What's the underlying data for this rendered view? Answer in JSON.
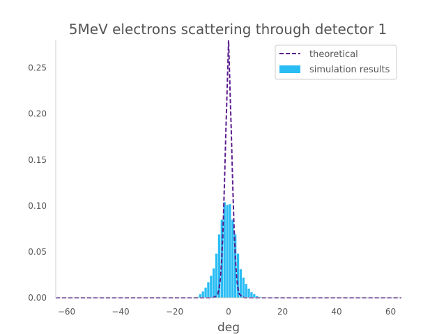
{
  "chart_data": {
    "type": "bar",
    "title": "5MeV electrons scattering through detector 1",
    "xlabel": "deg",
    "ylabel": "",
    "xlim": [
      -64,
      64
    ],
    "ylim": [
      0,
      0.28
    ],
    "grid": false,
    "legend_position": "top-right",
    "x_ticks": [
      -60,
      -40,
      -20,
      0,
      20,
      40,
      60
    ],
    "x_tick_labels": [
      "−60",
      "−40",
      "−20",
      "0",
      "20",
      "40",
      "60"
    ],
    "y_ticks": [
      0.0,
      0.05,
      0.1,
      0.15,
      0.2,
      0.25
    ],
    "y_tick_labels": [
      "0.00",
      "0.05",
      "0.10",
      "0.15",
      "0.20",
      "0.25"
    ],
    "bin_width": 1.0,
    "series": [
      {
        "name": "simulation results",
        "kind": "bar",
        "color": "#29bdf4",
        "x": [
          -12,
          -11,
          -10,
          -9,
          -8,
          -7,
          -6,
          -5,
          -4,
          -3,
          -2,
          -1,
          0,
          1,
          2,
          3,
          4,
          5,
          6,
          7,
          8,
          9,
          10,
          11
        ],
        "values": [
          0.001,
          0.004,
          0.007,
          0.011,
          0.017,
          0.024,
          0.032,
          0.048,
          0.069,
          0.085,
          0.104,
          0.101,
          0.102,
          0.085,
          0.069,
          0.048,
          0.031,
          0.022,
          0.015,
          0.01,
          0.006,
          0.004,
          0.002,
          0.001
        ]
      },
      {
        "name": "theoretical",
        "kind": "dashed-line",
        "color": "#5b1c8f",
        "x": [
          -64,
          -20,
          -6,
          -5,
          -4,
          -3.5,
          -3,
          -2.5,
          -2,
          -1.5,
          -1,
          -0.5,
          0,
          0.5,
          1,
          1.5,
          2,
          2.5,
          3,
          3.5,
          4,
          5,
          6,
          20,
          64
        ],
        "values": [
          0,
          0,
          0.0,
          0.001,
          0.004,
          0.01,
          0.022,
          0.044,
          0.079,
          0.127,
          0.181,
          0.23,
          0.28,
          0.23,
          0.181,
          0.127,
          0.079,
          0.044,
          0.022,
          0.01,
          0.004,
          0.001,
          0.0,
          0,
          0
        ]
      }
    ]
  }
}
